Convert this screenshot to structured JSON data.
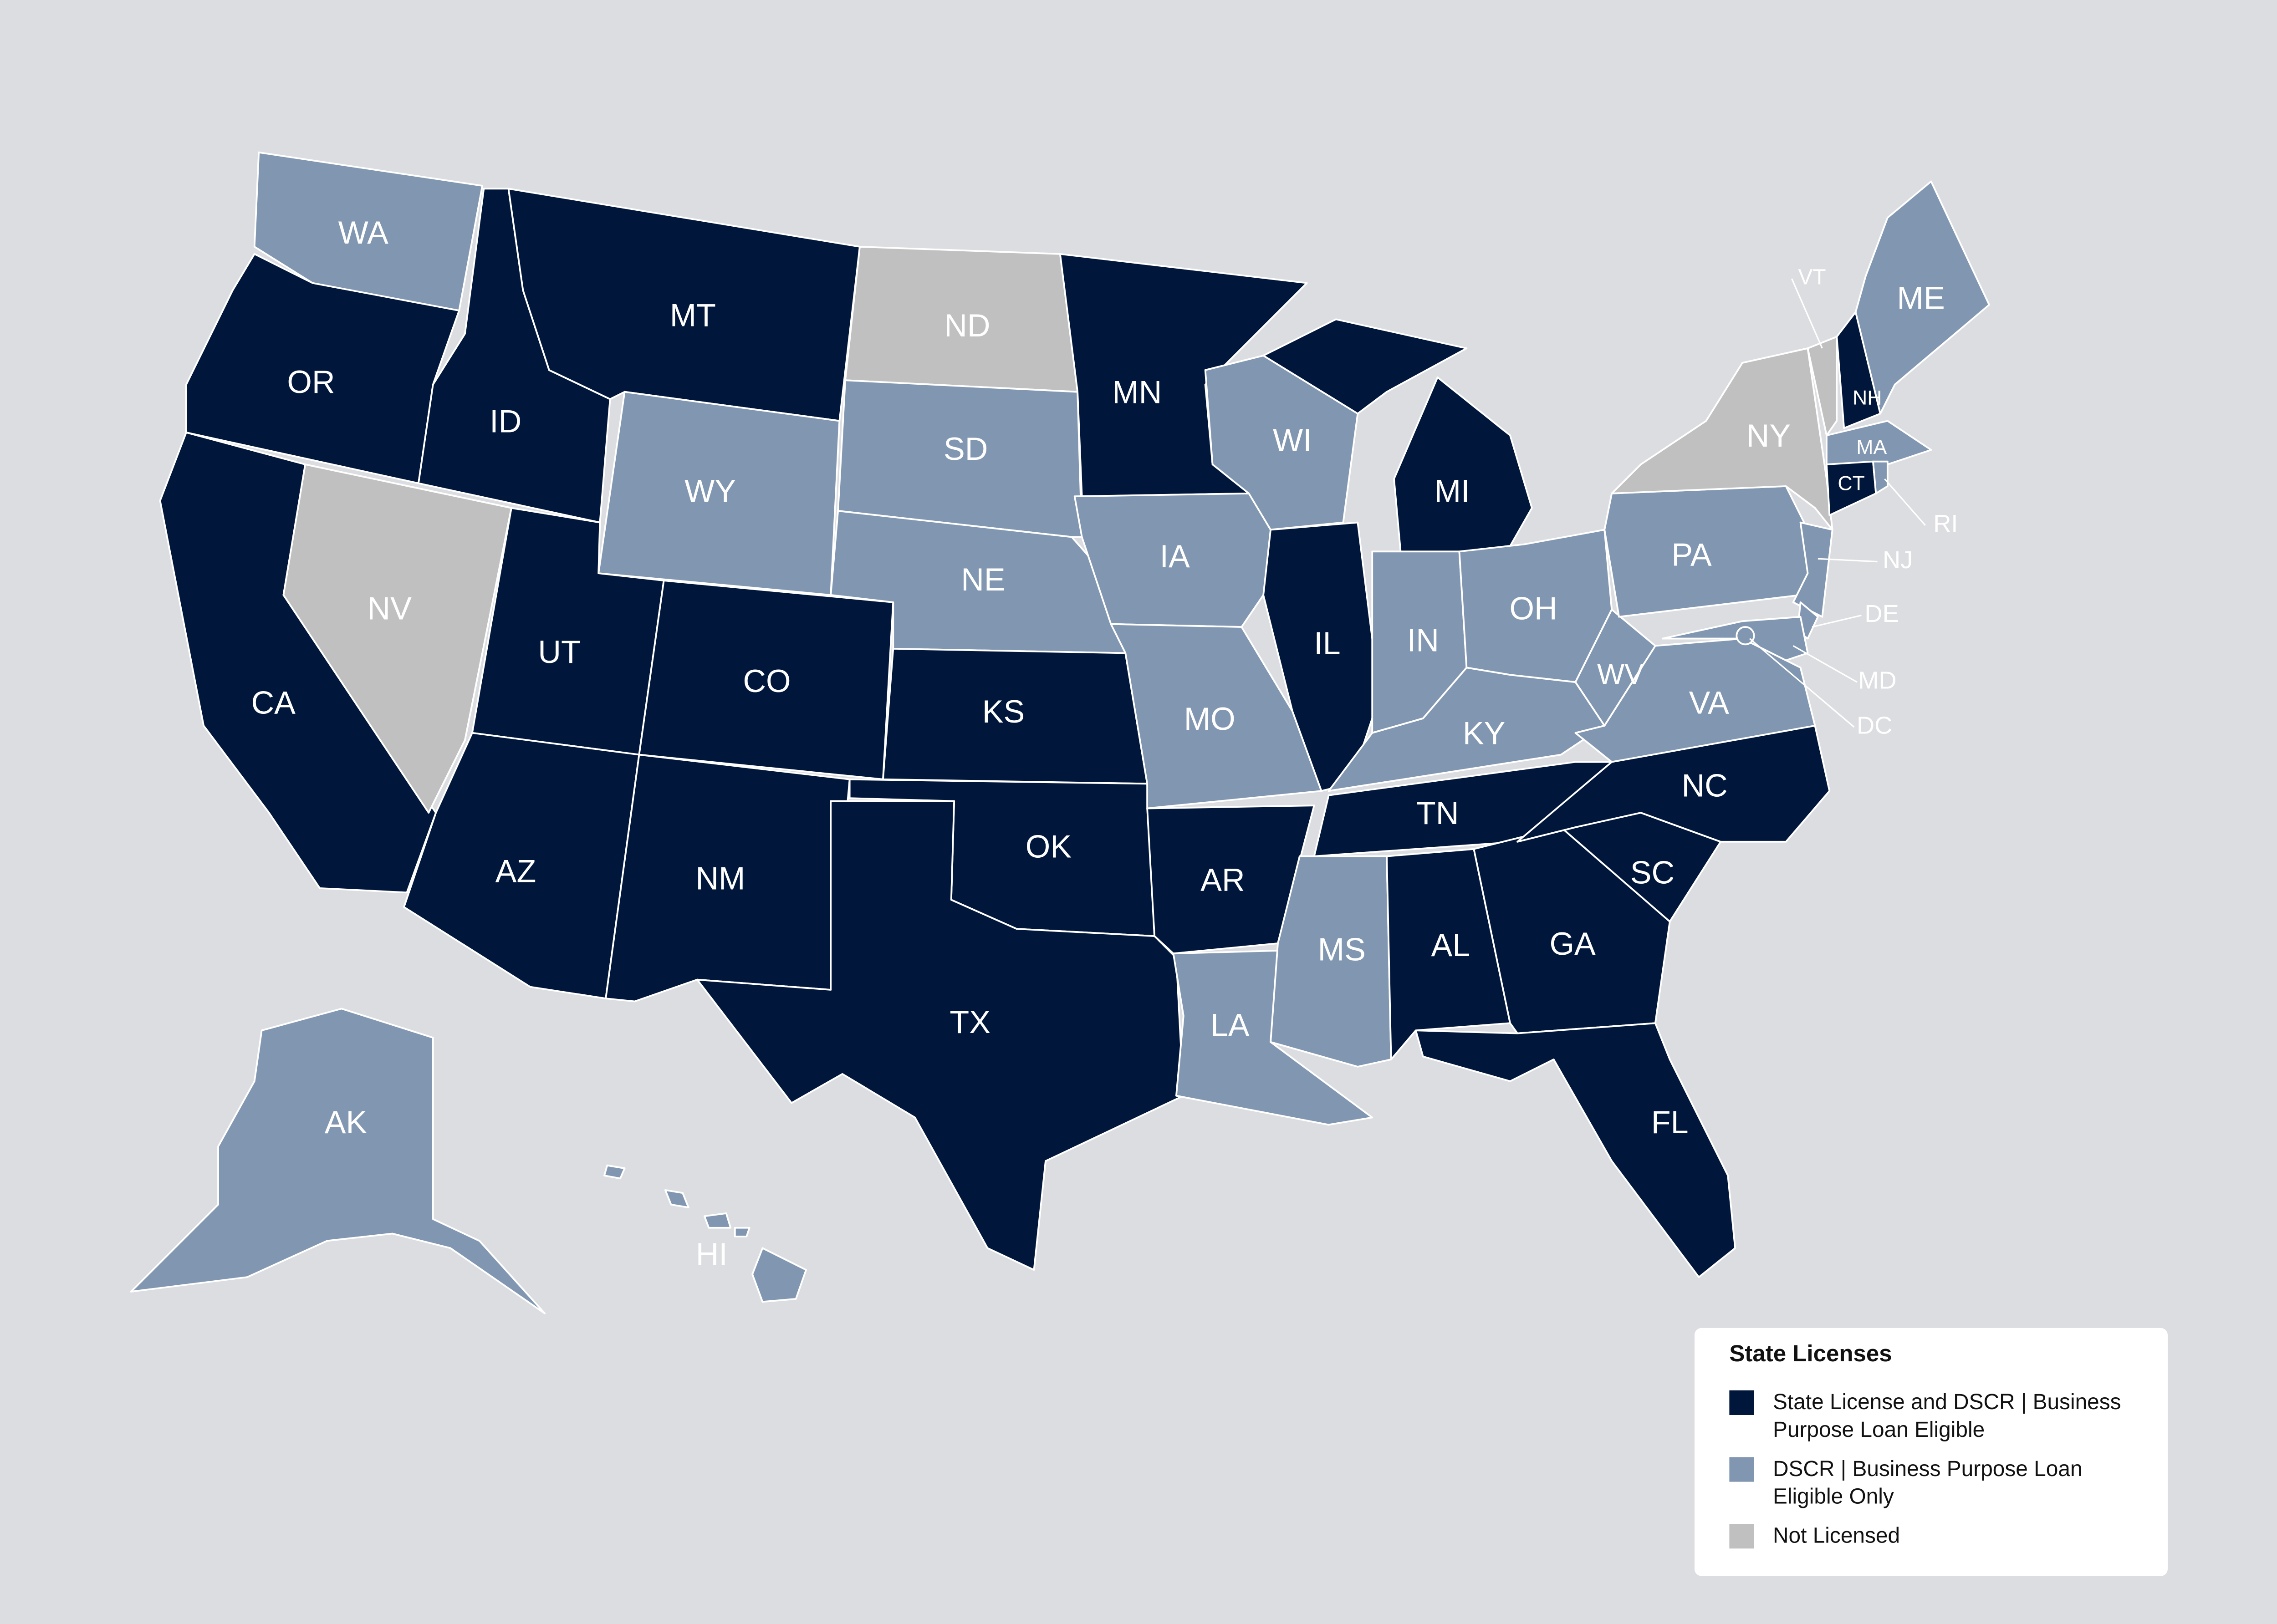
{
  "legend": {
    "title": "State Licenses",
    "items": [
      {
        "label": "State License and DSCR | Business Purpose Loan Eligible",
        "color": "#00163a"
      },
      {
        "label": "DSCR | Business Purpose Loan Eligible Only",
        "color": "#8196b0"
      },
      {
        "label": "Not Licensed",
        "color": "#c0c0c0"
      }
    ]
  },
  "states": [
    {
      "label": "WA",
      "status": 1
    },
    {
      "label": "OR",
      "status": 0
    },
    {
      "label": "CA",
      "status": 0
    },
    {
      "label": "NV",
      "status": 2
    },
    {
      "label": "ID",
      "status": 0
    },
    {
      "label": "MT",
      "status": 0
    },
    {
      "label": "WY",
      "status": 1
    },
    {
      "label": "UT",
      "status": 0
    },
    {
      "label": "AZ",
      "status": 0
    },
    {
      "label": "CO",
      "status": 0
    },
    {
      "label": "NM",
      "status": 0
    },
    {
      "label": "ND",
      "status": 2
    },
    {
      "label": "SD",
      "status": 1
    },
    {
      "label": "NE",
      "status": 1
    },
    {
      "label": "KS",
      "status": 0
    },
    {
      "label": "OK",
      "status": 0
    },
    {
      "label": "TX",
      "status": 0
    },
    {
      "label": "MN",
      "status": 0
    },
    {
      "label": "IA",
      "status": 1
    },
    {
      "label": "MO",
      "status": 1
    },
    {
      "label": "AR",
      "status": 0
    },
    {
      "label": "LA",
      "status": 1
    },
    {
      "label": "WI",
      "status": 1
    },
    {
      "label": "IL",
      "status": 0
    },
    {
      "label": "MI",
      "status": 0
    },
    {
      "label": "IN",
      "status": 1
    },
    {
      "label": "OH",
      "status": 1
    },
    {
      "label": "KY",
      "status": 1
    },
    {
      "label": "TN",
      "status": 0
    },
    {
      "label": "MS",
      "status": 1
    },
    {
      "label": "AL",
      "status": 0
    },
    {
      "label": "GA",
      "status": 0
    },
    {
      "label": "FL",
      "status": 0
    },
    {
      "label": "SC",
      "status": 0
    },
    {
      "label": "NC",
      "status": 0
    },
    {
      "label": "VA",
      "status": 1
    },
    {
      "label": "WV",
      "status": 1
    },
    {
      "label": "PA",
      "status": 1
    },
    {
      "label": "NY",
      "status": 2
    },
    {
      "label": "NJ",
      "status": 1
    },
    {
      "label": "DE",
      "status": 1
    },
    {
      "label": "MD",
      "status": 1
    },
    {
      "label": "DC",
      "status": 1
    },
    {
      "label": "VT",
      "status": 2
    },
    {
      "label": "NH",
      "status": 0
    },
    {
      "label": "ME",
      "status": 1
    },
    {
      "label": "MA",
      "status": 1
    },
    {
      "label": "CT",
      "status": 0
    },
    {
      "label": "RI",
      "status": 1
    },
    {
      "label": "AK",
      "status": 1
    },
    {
      "label": "HI",
      "status": 1
    }
  ]
}
